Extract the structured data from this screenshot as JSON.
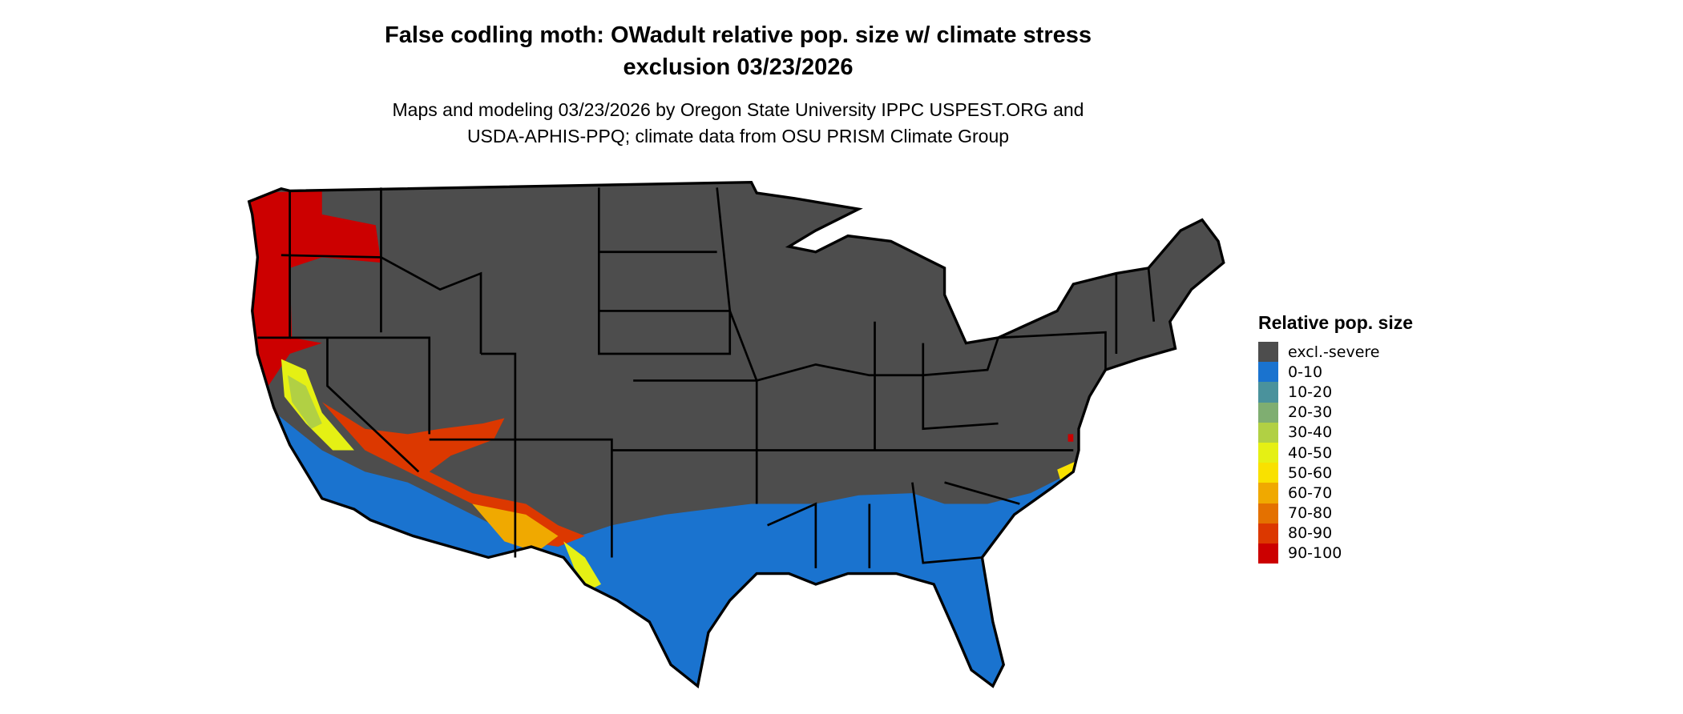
{
  "title": {
    "line1": "False codling moth: OWadult relative pop. size w/ climate stress",
    "line2": "exclusion 03/23/2026"
  },
  "subtitle": {
    "line1": "Maps and modeling 03/23/2026 by Oregon State University IPPC USPEST.ORG and",
    "line2": "USDA-APHIS-PPQ; climate data from OSU PRISM Climate Group"
  },
  "map": {
    "background_color": "#4d4d4d",
    "border_color": "#000000"
  },
  "legend": {
    "title": "Relative pop. size",
    "items": [
      {
        "label": "excl.-severe",
        "color": "#4d4d4d"
      },
      {
        "label": "0-10",
        "color": "#1a73cf"
      },
      {
        "label": "10-20",
        "color": "#4a929c"
      },
      {
        "label": "20-30",
        "color": "#7fae71"
      },
      {
        "label": "30-40",
        "color": "#b1d044"
      },
      {
        "label": "40-50",
        "color": "#e5f014"
      },
      {
        "label": "50-60",
        "color": "#f9e100"
      },
      {
        "label": "60-70",
        "color": "#f0a900"
      },
      {
        "label": "70-80",
        "color": "#e47100"
      },
      {
        "label": "80-90",
        "color": "#dc3800"
      },
      {
        "label": "90-100",
        "color": "#cc0000"
      }
    ]
  }
}
